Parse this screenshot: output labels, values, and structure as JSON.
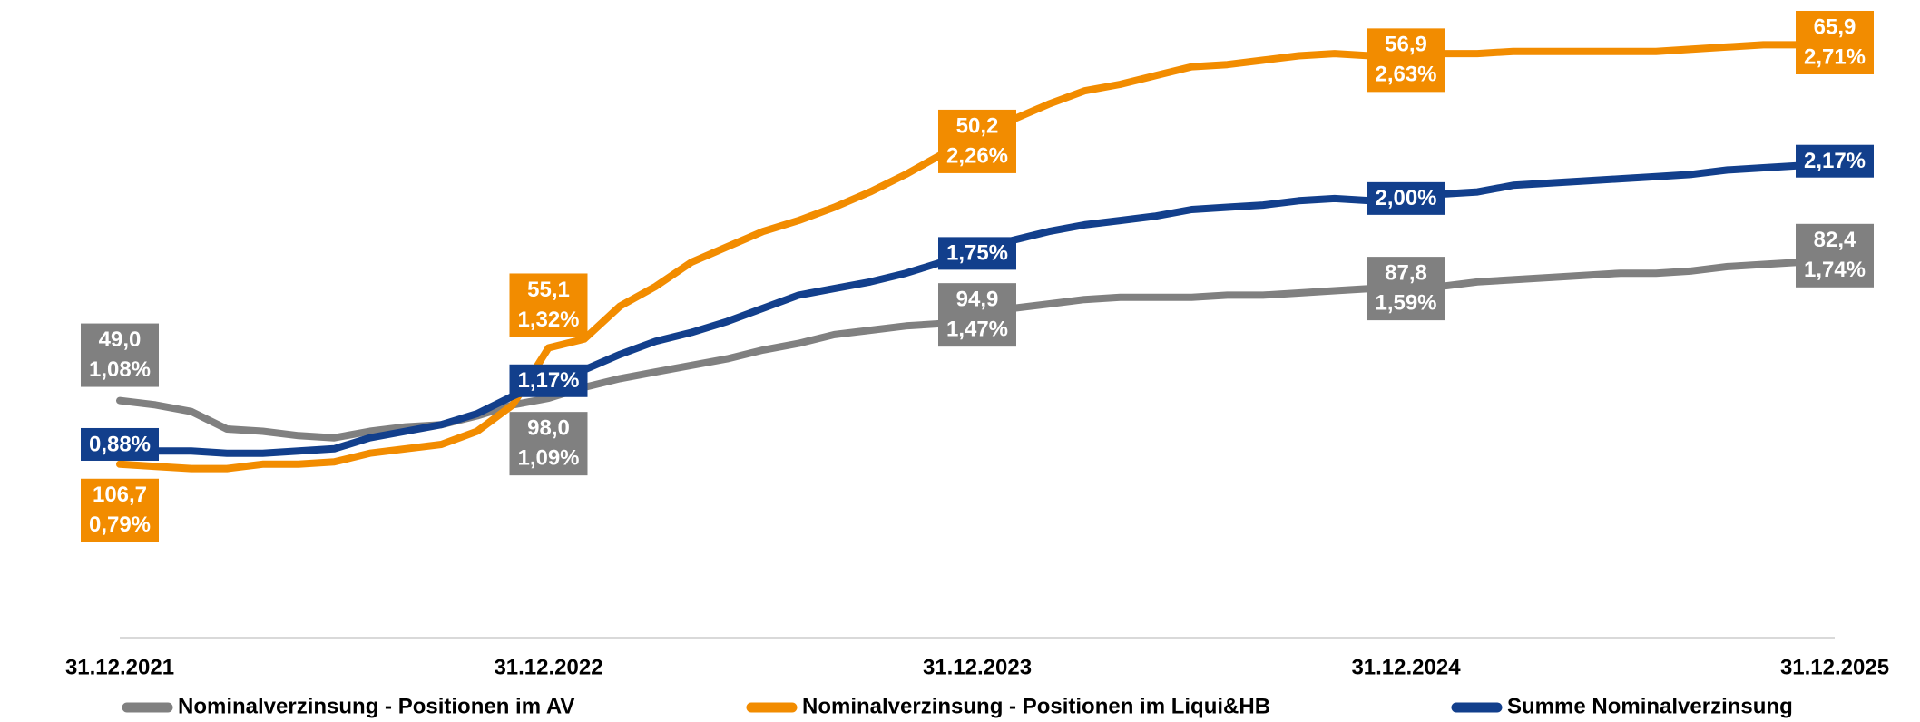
{
  "chart_data": {
    "type": "line",
    "categories": [
      "31.12.2021",
      null,
      null,
      null,
      null,
      null,
      null,
      null,
      null,
      null,
      null,
      null,
      "31.12.2022",
      null,
      null,
      null,
      null,
      null,
      null,
      null,
      null,
      null,
      null,
      null,
      "31.12.2023",
      null,
      null,
      null,
      null,
      null,
      null,
      null,
      null,
      null,
      null,
      null,
      "31.12.2024",
      null,
      null,
      null,
      null,
      null,
      null,
      null,
      null,
      null,
      null,
      null,
      "31.12.2025"
    ],
    "ylim": [
      0,
      2.9
    ],
    "series": [
      {
        "name": "Nominalverzinsung - Positionen im AV",
        "color": "#808080",
        "values": [
          1.08,
          1.06,
          1.03,
          0.95,
          0.94,
          0.92,
          0.91,
          0.94,
          0.96,
          0.97,
          1.01,
          1.06,
          1.09,
          1.14,
          1.18,
          1.21,
          1.24,
          1.27,
          1.31,
          1.34,
          1.38,
          1.4,
          1.42,
          1.43,
          1.47,
          1.5,
          1.52,
          1.54,
          1.55,
          1.55,
          1.55,
          1.56,
          1.56,
          1.57,
          1.58,
          1.59,
          1.59,
          1.6,
          1.62,
          1.63,
          1.64,
          1.65,
          1.66,
          1.66,
          1.67,
          1.69,
          1.7,
          1.71,
          1.74
        ],
        "value_labels": [
          "1,08%",
          null,
          null,
          null,
          null,
          null,
          null,
          null,
          null,
          null,
          null,
          null,
          "1,09%",
          null,
          null,
          null,
          null,
          null,
          null,
          null,
          null,
          null,
          null,
          null,
          "1,47%",
          null,
          null,
          null,
          null,
          null,
          null,
          null,
          null,
          null,
          null,
          null,
          "1,59%",
          null,
          null,
          null,
          null,
          null,
          null,
          null,
          null,
          null,
          null,
          null,
          "1,74%"
        ],
        "extra_labels": [
          "49,0",
          null,
          null,
          null,
          null,
          null,
          null,
          null,
          null,
          null,
          null,
          null,
          "98,0",
          null,
          null,
          null,
          null,
          null,
          null,
          null,
          null,
          null,
          null,
          null,
          "94,9",
          null,
          null,
          null,
          null,
          null,
          null,
          null,
          null,
          null,
          null,
          null,
          "87,8",
          null,
          null,
          null,
          null,
          null,
          null,
          null,
          null,
          null,
          null,
          null,
          "82,4"
        ]
      },
      {
        "name": "Nominalverzinsung - Positionen im Liqui&HB",
        "color": "#f28c00",
        "values": [
          0.79,
          0.78,
          0.77,
          0.77,
          0.79,
          0.79,
          0.8,
          0.84,
          0.86,
          0.88,
          0.94,
          1.06,
          1.32,
          1.36,
          1.51,
          1.6,
          1.71,
          1.78,
          1.85,
          1.9,
          1.96,
          2.03,
          2.11,
          2.2,
          2.26,
          2.36,
          2.43,
          2.49,
          2.52,
          2.56,
          2.6,
          2.61,
          2.63,
          2.65,
          2.66,
          2.65,
          2.63,
          2.66,
          2.66,
          2.67,
          2.67,
          2.67,
          2.67,
          2.67,
          2.68,
          2.69,
          2.7,
          2.7,
          2.71
        ],
        "value_labels": [
          "0,79%",
          null,
          null,
          null,
          null,
          null,
          null,
          null,
          null,
          null,
          null,
          null,
          "1,32%",
          null,
          null,
          null,
          null,
          null,
          null,
          null,
          null,
          null,
          null,
          null,
          "2,26%",
          null,
          null,
          null,
          null,
          null,
          null,
          null,
          null,
          null,
          null,
          null,
          "2,63%",
          null,
          null,
          null,
          null,
          null,
          null,
          null,
          null,
          null,
          null,
          null,
          "2,71%"
        ],
        "extra_labels": [
          "106,7",
          null,
          null,
          null,
          null,
          null,
          null,
          null,
          null,
          null,
          null,
          null,
          "55,1",
          null,
          null,
          null,
          null,
          null,
          null,
          null,
          null,
          null,
          null,
          null,
          "50,2",
          null,
          null,
          null,
          null,
          null,
          null,
          null,
          null,
          null,
          null,
          null,
          "56,9",
          null,
          null,
          null,
          null,
          null,
          null,
          null,
          null,
          null,
          null,
          null,
          "65,9"
        ]
      },
      {
        "name": "Summe Nominalverzinsung",
        "color": "#123f8c",
        "values": [
          0.88,
          0.85,
          0.85,
          0.84,
          0.84,
          0.85,
          0.86,
          0.91,
          0.94,
          0.97,
          1.02,
          1.1,
          1.17,
          1.22,
          1.29,
          1.35,
          1.39,
          1.44,
          1.5,
          1.56,
          1.59,
          1.62,
          1.66,
          1.71,
          1.75,
          1.81,
          1.85,
          1.88,
          1.9,
          1.92,
          1.95,
          1.96,
          1.97,
          1.99,
          2.0,
          1.99,
          2.0,
          2.02,
          2.03,
          2.06,
          2.07,
          2.08,
          2.09,
          2.1,
          2.11,
          2.13,
          2.14,
          2.15,
          2.17
        ],
        "value_labels": [
          "0,88%",
          null,
          null,
          null,
          null,
          null,
          null,
          null,
          null,
          null,
          null,
          null,
          "1,17%",
          null,
          null,
          null,
          null,
          null,
          null,
          null,
          null,
          null,
          null,
          null,
          "1,75%",
          null,
          null,
          null,
          null,
          null,
          null,
          null,
          null,
          null,
          null,
          null,
          "2,00%",
          null,
          null,
          null,
          null,
          null,
          null,
          null,
          null,
          null,
          null,
          null,
          "2,17%"
        ]
      }
    ],
    "legend": "bottom"
  }
}
